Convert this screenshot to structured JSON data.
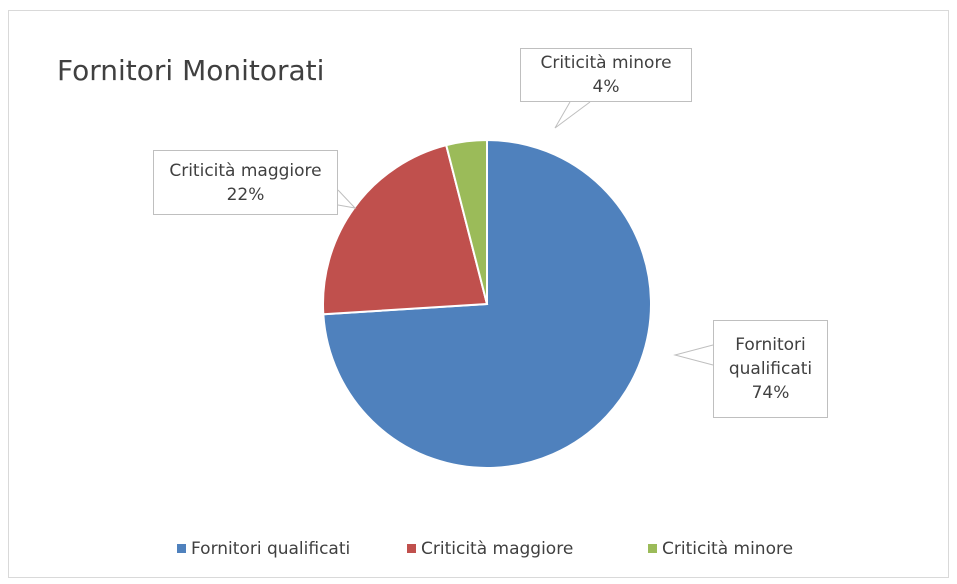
{
  "chart_data": {
    "type": "pie",
    "title": "Fornitori Monitorati",
    "categories": [
      "Fornitori qualificati",
      "Criticità maggiore",
      "Criticità minore"
    ],
    "values": [
      74,
      22,
      4
    ],
    "value_labels": [
      "74%",
      "22%",
      "4%"
    ],
    "colors": [
      "#4f81bd",
      "#c0504d",
      "#9bbb59"
    ],
    "legend": "bottom"
  }
}
